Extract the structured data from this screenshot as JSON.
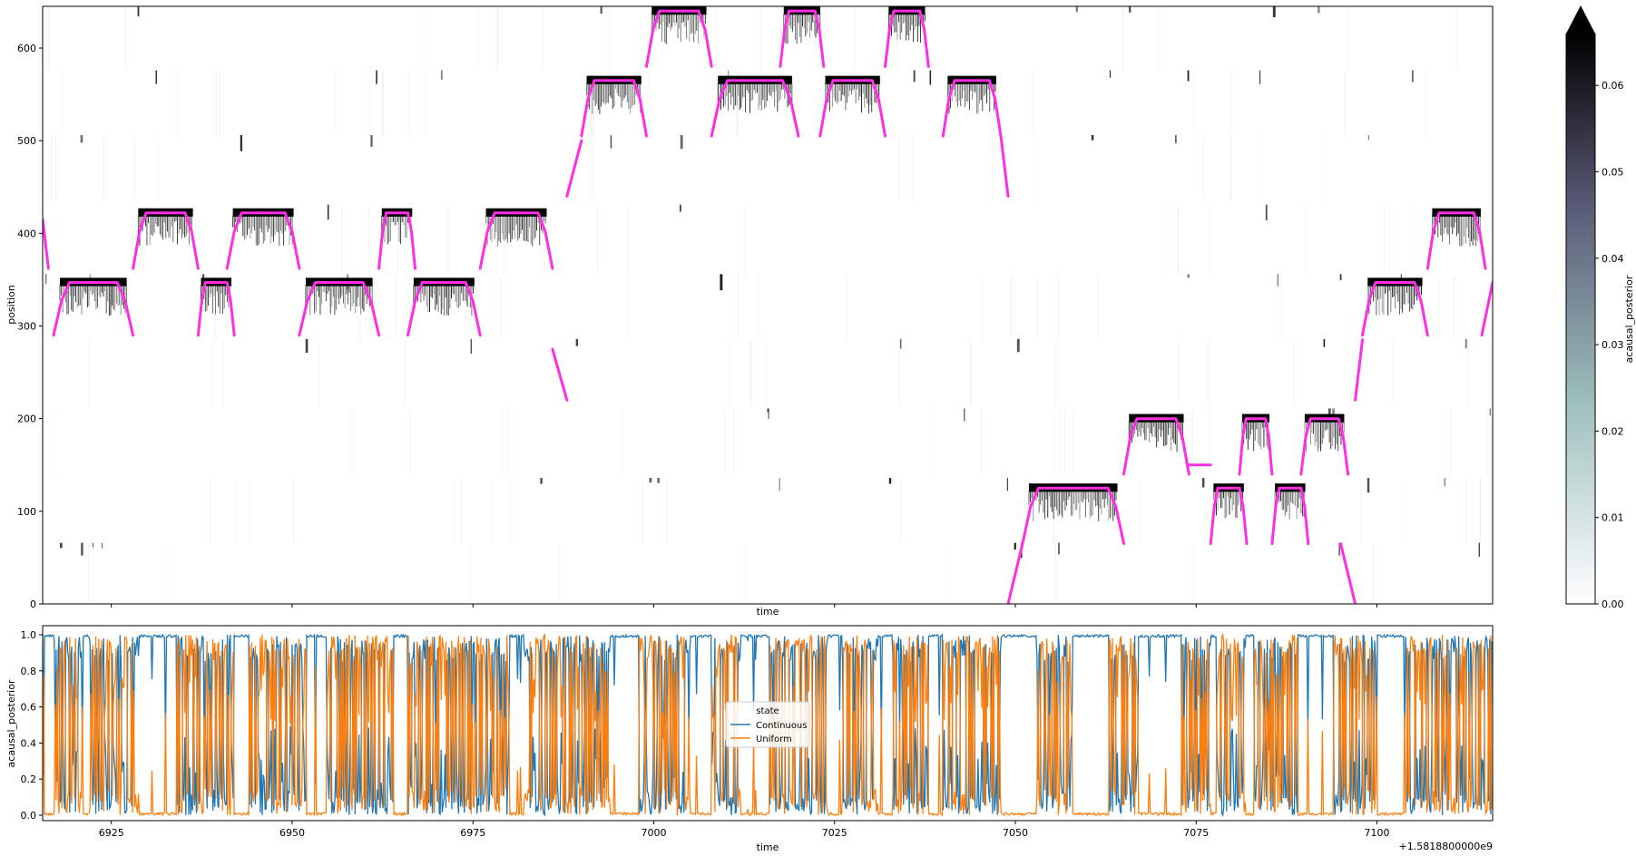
{
  "chart_data": [
    {
      "type": "heatmap",
      "title": "",
      "xlabel": "time",
      "ylabel": "position",
      "xlim": [
        6915.5,
        7116
      ],
      "ylim": [
        0,
        645
      ],
      "yticks": [
        0,
        100,
        200,
        300,
        400,
        500,
        600
      ],
      "colormap": "bone_r",
      "colorbar": {
        "label": "acausal_posterior",
        "range": [
          0.0,
          0.066
        ],
        "extend": "max",
        "ticks": [
          "0.00",
          "0.01",
          "0.02",
          "0.03",
          "0.04",
          "0.05",
          "0.06"
        ]
      },
      "segments": [
        {
          "track_start": 575,
          "track_end": 645
        },
        {
          "track_start": 505,
          "track_end": 575
        },
        {
          "track_start": 435,
          "track_end": 505
        },
        {
          "track_start": 355,
          "track_end": 430
        },
        {
          "track_start": 285,
          "track_end": 355
        },
        {
          "track_start": 215,
          "track_end": 285
        },
        {
          "track_start": 140,
          "track_end": 210
        },
        {
          "track_start": 65,
          "track_end": 135
        },
        {
          "track_start": 0,
          "track_end": 65
        }
      ],
      "trajectory_color": "#ff2de6",
      "trajectory": [
        {
          "t0": 6915.5,
          "t1": 6916.3,
          "p_start": 415,
          "p_end": 362,
          "plateau": 0
        },
        {
          "t0": 6917.0,
          "t1": 6928.0,
          "p_start": 290,
          "p_end": 290,
          "plateau": 347
        },
        {
          "t0": 6928.0,
          "t1": 6937.0,
          "p_start": 362,
          "p_end": 362,
          "plateau": 422
        },
        {
          "t0": 6937.0,
          "t1": 6942.0,
          "p_start": 290,
          "p_end": 290,
          "plateau": 347
        },
        {
          "t0": 6941.0,
          "t1": 6951.0,
          "p_start": 362,
          "p_end": 362,
          "plateau": 422
        },
        {
          "t0": 6951.0,
          "t1": 6962.0,
          "p_start": 290,
          "p_end": 290,
          "plateau": 347
        },
        {
          "t0": 6962.0,
          "t1": 6967.0,
          "p_start": 362,
          "p_end": 362,
          "plateau": 422
        },
        {
          "t0": 6966.0,
          "t1": 6976.0,
          "p_start": 290,
          "p_end": 290,
          "plateau": 347
        },
        {
          "t0": 6976.0,
          "t1": 6986.0,
          "p_start": 362,
          "p_end": 362,
          "plateau": 422
        },
        {
          "t0": 6986.0,
          "t1": 6988.0,
          "p_start": 275,
          "p_end": 220,
          "plateau": 0
        },
        {
          "t0": 6988.0,
          "t1": 6990.0,
          "p_start": 440,
          "p_end": 500,
          "plateau": 0
        },
        {
          "t0": 6990.0,
          "t1": 6999.0,
          "p_start": 505,
          "p_end": 505,
          "plateau": 565
        },
        {
          "t0": 6999.0,
          "t1": 7008.0,
          "p_start": 580,
          "p_end": 580,
          "plateau": 640
        },
        {
          "t0": 7008.0,
          "t1": 7020.0,
          "p_start": 505,
          "p_end": 505,
          "plateau": 565
        },
        {
          "t0": 7017.5,
          "t1": 7023.5,
          "p_start": 580,
          "p_end": 580,
          "plateau": 640
        },
        {
          "t0": 7023.0,
          "t1": 7032.0,
          "p_start": 505,
          "p_end": 505,
          "plateau": 565
        },
        {
          "t0": 7032.0,
          "t1": 7038.0,
          "p_start": 580,
          "p_end": 580,
          "plateau": 640
        },
        {
          "t0": 7040.0,
          "t1": 7048.0,
          "p_start": 505,
          "p_end": 505,
          "plateau": 565
        },
        {
          "t0": 7048.0,
          "t1": 7049.0,
          "p_start": 505,
          "p_end": 440,
          "plateau": 0
        },
        {
          "t0": 7049.0,
          "t1": 7051.0,
          "p_start": 0,
          "p_end": 65,
          "plateau": 0
        },
        {
          "t0": 7051.0,
          "t1": 7065.0,
          "p_start": 65,
          "p_end": 65,
          "plateau": 125
        },
        {
          "t0": 7065.0,
          "t1": 7074.0,
          "p_start": 140,
          "p_end": 140,
          "plateau": 200
        },
        {
          "t0": 7074.0,
          "t1": 7077.0,
          "p_start": 150,
          "p_end": 150,
          "plateau": 150
        },
        {
          "t0": 7077.0,
          "t1": 7082.0,
          "p_start": 65,
          "p_end": 65,
          "plateau": 125
        },
        {
          "t0": 7081.0,
          "t1": 7085.5,
          "p_start": 140,
          "p_end": 140,
          "plateau": 200
        },
        {
          "t0": 7085.5,
          "t1": 7090.5,
          "p_start": 65,
          "p_end": 65,
          "plateau": 125
        },
        {
          "t0": 7089.5,
          "t1": 7096.0,
          "p_start": 140,
          "p_end": 140,
          "plateau": 200
        },
        {
          "t0": 7095.0,
          "t1": 7097.0,
          "p_start": 65,
          "p_end": 0,
          "plateau": 0
        },
        {
          "t0": 7097.0,
          "t1": 7098.0,
          "p_start": 220,
          "p_end": 285,
          "plateau": 0
        },
        {
          "t0": 7098.0,
          "t1": 7107.0,
          "p_start": 290,
          "p_end": 290,
          "plateau": 347
        },
        {
          "t0": 7107.0,
          "t1": 7115.0,
          "p_start": 362,
          "p_end": 362,
          "plateau": 422
        },
        {
          "t0": 7114.5,
          "t1": 7116.0,
          "p_start": 290,
          "p_end": 347,
          "plateau": 0
        }
      ]
    },
    {
      "type": "line",
      "title": "",
      "xlabel": "time",
      "ylabel": "acausal_posterior",
      "xlim": [
        6915.5,
        7116
      ],
      "ylim": [
        -0.03,
        1.05
      ],
      "xticks": [
        6925,
        6950,
        6975,
        7000,
        7025,
        7050,
        7075,
        7100
      ],
      "yticks": [
        "0.0",
        "0.2",
        "0.4",
        "0.6",
        "0.8",
        "1.0"
      ],
      "x_offset_label": "+1.5818800000e9",
      "legend": {
        "title": "state",
        "placement": "center"
      },
      "series": [
        {
          "name": "Continuous",
          "color": "#1f77b4",
          "baseline": 0.99
        },
        {
          "name": "Uniform",
          "color": "#ff7f0e",
          "baseline": 0.01
        }
      ],
      "transition_windows": [
        [
          6917,
          6921
        ],
        [
          6922,
          6929
        ],
        [
          6934,
          6942
        ],
        [
          6944,
          6952
        ],
        [
          6955,
          6964
        ],
        [
          6966,
          6980
        ],
        [
          6982,
          6989
        ],
        [
          6989,
          6994
        ],
        [
          6998,
          7005
        ],
        [
          7008,
          7012
        ],
        [
          7016,
          7024
        ],
        [
          7026,
          7031
        ],
        [
          7033,
          7038
        ],
        [
          7040,
          7048
        ],
        [
          7053,
          7058
        ],
        [
          7063,
          7067
        ],
        [
          7073,
          7077
        ],
        [
          7078,
          7082
        ],
        [
          7083,
          7089
        ],
        [
          7094,
          7100
        ],
        [
          7104,
          7116
        ]
      ]
    }
  ]
}
